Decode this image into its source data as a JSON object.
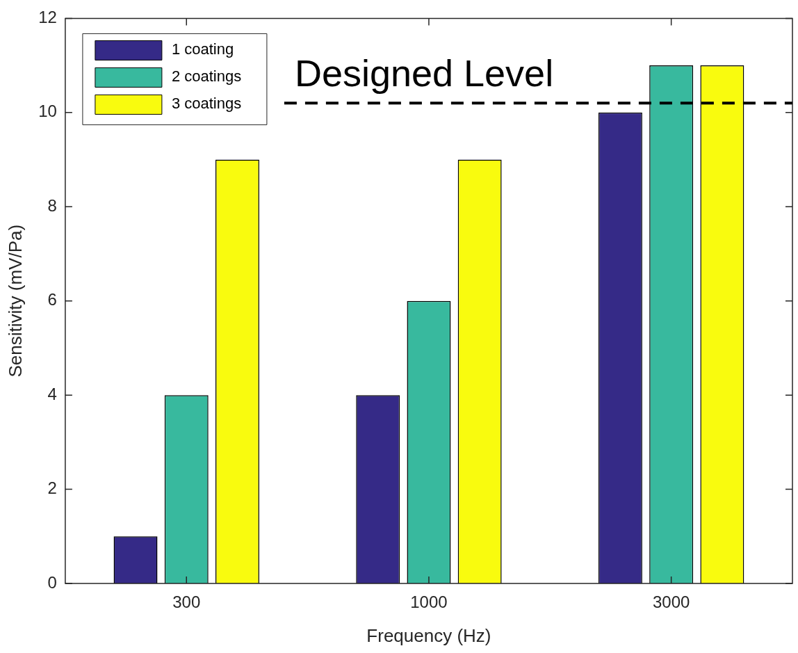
{
  "chart_data": {
    "type": "bar",
    "xlabel": "Frequency (Hz)",
    "ylabel": "Sensitivity (mV/Pa)",
    "categories": [
      "300",
      "1000",
      "3000"
    ],
    "series": [
      {
        "name": "1 coating",
        "color": "#352a87",
        "values": [
          1,
          4,
          10
        ]
      },
      {
        "name": "2 coatings",
        "color": "#38b99e",
        "values": [
          4,
          6,
          11
        ]
      },
      {
        "name": "3 coatings",
        "color": "#f9fb0e",
        "values": [
          9,
          9,
          11
        ]
      }
    ],
    "ylim": [
      0,
      12
    ],
    "yticks": [
      0,
      2,
      4,
      6,
      8,
      10,
      12
    ],
    "grid": false,
    "legend": "top left",
    "ref_lines": [
      {
        "axis": "y",
        "value": 10.2,
        "label": "Designed Level",
        "line_style": "dashed",
        "color": "#000000"
      }
    ]
  }
}
